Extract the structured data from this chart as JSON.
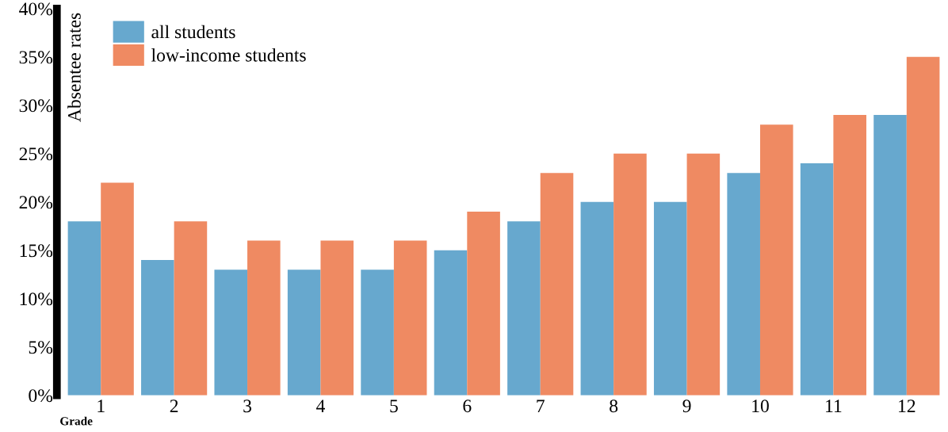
{
  "chart_data": {
    "type": "bar",
    "xlabel": "Grade",
    "ylabel": "Absentee rates",
    "categories": [
      "1",
      "2",
      "3",
      "4",
      "5",
      "6",
      "7",
      "8",
      "9",
      "10",
      "11",
      "12"
    ],
    "series": [
      {
        "name": "all students",
        "color": "#67a8ce",
        "values": [
          18,
          14,
          13,
          13,
          13,
          15,
          18,
          20,
          20,
          23,
          24,
          29
        ]
      },
      {
        "name": "low-income students",
        "color": "#ef8a62",
        "values": [
          22,
          18,
          16,
          16,
          16,
          19,
          23,
          25,
          25,
          28,
          29,
          35
        ]
      }
    ],
    "ylim": [
      0,
      40
    ],
    "yticks": [
      {
        "value": 0,
        "label": "0%"
      },
      {
        "value": 5,
        "label": "5%"
      },
      {
        "value": 10,
        "label": "10%"
      },
      {
        "value": 15,
        "label": "15%"
      },
      {
        "value": 20,
        "label": "20%"
      },
      {
        "value": 25,
        "label": "25%"
      },
      {
        "value": 30,
        "label": "30%"
      },
      {
        "value": 35,
        "label": "35%"
      },
      {
        "value": 40,
        "label": "40%"
      }
    ],
    "grid": false,
    "legend": "top left"
  }
}
